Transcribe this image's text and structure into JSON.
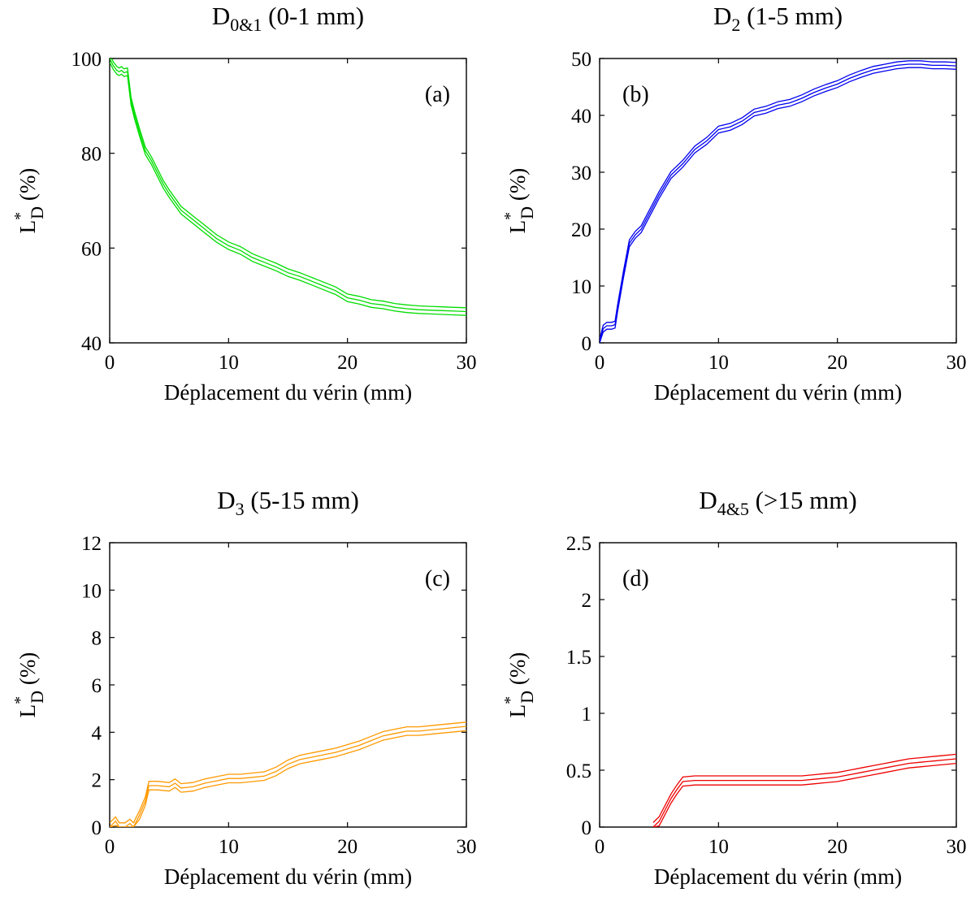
{
  "chart_data": [
    {
      "id": "a",
      "type": "line",
      "panel_label": "(a)",
      "title": {
        "main": "D",
        "sub": "0&1",
        "suffix": " (0-1 mm)"
      },
      "xlabel": "Déplacement du vérin (mm)",
      "ylabel": {
        "main": "L",
        "sup": "*",
        "sub": "D",
        "suffix": " (%)"
      },
      "xlim": [
        0,
        30
      ],
      "ylim": [
        40,
        100
      ],
      "xticks": [
        0,
        10,
        20,
        30
      ],
      "yticks": [
        40,
        60,
        80,
        100
      ],
      "xtick_labels": [
        "0",
        "10",
        "20",
        "30"
      ],
      "ytick_labels": [
        "40",
        "60",
        "80",
        "100"
      ],
      "color": "#00dd00",
      "band_width": 0.8,
      "x": [
        0,
        0.3,
        0.6,
        0.8,
        1.0,
        1.2,
        1.5,
        1.8,
        2.1,
        2.5,
        3,
        3.5,
        4,
        4.5,
        5,
        6,
        7,
        8,
        9,
        10,
        10.5,
        11,
        12,
        13,
        14,
        15,
        16,
        17,
        18,
        19,
        20,
        21,
        22,
        23,
        24,
        25,
        26,
        27,
        28,
        29,
        30
      ],
      "y": [
        100,
        98.5,
        97.5,
        97.2,
        97.5,
        97,
        97.2,
        91,
        88,
        84.5,
        80.5,
        78.5,
        76,
        73.5,
        71.5,
        68,
        66,
        64,
        62,
        60.5,
        60,
        59.5,
        58,
        57,
        56,
        54.8,
        54,
        53,
        52,
        51,
        49.5,
        49,
        48.3,
        48,
        47.5,
        47.2,
        47,
        46.9,
        46.8,
        46.7,
        46.6
      ]
    },
    {
      "id": "b",
      "type": "line",
      "panel_label": "(b)",
      "title": {
        "main": "D",
        "sub": "2",
        "suffix": " (1-5 mm)"
      },
      "xlabel": "Déplacement du vérin (mm)",
      "ylabel": {
        "main": "L",
        "sup": "*",
        "sub": "D",
        "suffix": " (%)"
      },
      "xlim": [
        0,
        30
      ],
      "ylim": [
        0,
        50
      ],
      "xticks": [
        0,
        10,
        20,
        30
      ],
      "yticks": [
        0,
        10,
        20,
        30,
        40,
        50
      ],
      "xtick_labels": [
        "0",
        "10",
        "20",
        "30"
      ],
      "ytick_labels": [
        "0",
        "10",
        "20",
        "30",
        "40",
        "50"
      ],
      "color": "#0000ee",
      "band_width": 0.6,
      "x": [
        0,
        0.3,
        0.6,
        1.0,
        1.3,
        1.5,
        2,
        2.5,
        3,
        3.5,
        4,
        5,
        6,
        7,
        8,
        9,
        10,
        11,
        12,
        13,
        14,
        15,
        16,
        17,
        18,
        19,
        20,
        21,
        22,
        23,
        24,
        25,
        26,
        27,
        28,
        29,
        30
      ],
      "y": [
        0,
        2.5,
        3,
        3,
        3.2,
        6,
        12,
        17.5,
        19,
        20,
        22,
        26,
        29.5,
        31.5,
        34,
        35.5,
        37.5,
        38,
        39,
        40.5,
        41,
        41.8,
        42.2,
        43,
        44,
        44.8,
        45.5,
        46.5,
        47.3,
        48,
        48.4,
        48.8,
        49,
        49,
        48.8,
        48.8,
        48.7
      ]
    },
    {
      "id": "c",
      "type": "line",
      "panel_label": "(c)",
      "title": {
        "main": "D",
        "sub": "3",
        "suffix": " (5-15 mm)"
      },
      "xlabel": "Déplacement du vérin (mm)",
      "ylabel": {
        "main": "L",
        "sup": "*",
        "sub": "D",
        "suffix": " (%)"
      },
      "xlim": [
        0,
        30
      ],
      "ylim": [
        0,
        12
      ],
      "xticks": [
        0,
        10,
        20,
        30
      ],
      "yticks": [
        0,
        2,
        4,
        6,
        8,
        10,
        12
      ],
      "xtick_labels": [
        "0",
        "10",
        "20",
        "30"
      ],
      "ytick_labels": [
        "0",
        "2",
        "4",
        "6",
        "8",
        "10",
        "12"
      ],
      "color": "#ff9900",
      "band_width": 0.18,
      "x": [
        0,
        0.5,
        0.8,
        1.3,
        1.7,
        2,
        2.5,
        3.0,
        3.3,
        4,
        5,
        5.5,
        6,
        7,
        8,
        9,
        10,
        11,
        12,
        13,
        14,
        15,
        16,
        17,
        18,
        19,
        20,
        21,
        22,
        23,
        24,
        25,
        26,
        27,
        28,
        29,
        30
      ],
      "y": [
        0,
        0.25,
        0,
        0,
        0.15,
        0,
        0.5,
        1.1,
        1.75,
        1.75,
        1.7,
        1.85,
        1.65,
        1.7,
        1.85,
        1.95,
        2.05,
        2.05,
        2.1,
        2.15,
        2.35,
        2.65,
        2.85,
        2.95,
        3.05,
        3.15,
        3.3,
        3.45,
        3.65,
        3.85,
        3.95,
        4.05,
        4.05,
        4.1,
        4.15,
        4.2,
        4.25
      ]
    },
    {
      "id": "d",
      "type": "line",
      "panel_label": "(d)",
      "title": {
        "main": "D",
        "sub": "4&5",
        "suffix": " (>15 mm)"
      },
      "xlabel": "Déplacement du vérin (mm)",
      "ylabel": {
        "main": "L",
        "sup": "*",
        "sub": "D",
        "suffix": " (%)"
      },
      "xlim": [
        0,
        30
      ],
      "ylim": [
        0,
        2.5
      ],
      "xticks": [
        0,
        10,
        20,
        30
      ],
      "yticks": [
        0,
        0.5,
        1,
        1.5,
        2,
        2.5
      ],
      "xtick_labels": [
        "0",
        "10",
        "20",
        "30"
      ],
      "ytick_labels": [
        "0",
        "0.5",
        "1",
        "1.5",
        "2",
        "2.5"
      ],
      "color": "#ee0000",
      "band_width": 0.04,
      "x": [
        4.5,
        5,
        5.5,
        6,
        6.5,
        7,
        8,
        9,
        10,
        11,
        12,
        13,
        14,
        15,
        16,
        17,
        18,
        19,
        20,
        21,
        22,
        23,
        24,
        25,
        26,
        27,
        28,
        29,
        30
      ],
      "y": [
        0,
        0.05,
        0.15,
        0.25,
        0.33,
        0.4,
        0.41,
        0.41,
        0.41,
        0.41,
        0.41,
        0.41,
        0.41,
        0.41,
        0.41,
        0.41,
        0.42,
        0.43,
        0.44,
        0.46,
        0.48,
        0.5,
        0.52,
        0.54,
        0.56,
        0.57,
        0.58,
        0.59,
        0.6
      ]
    }
  ]
}
